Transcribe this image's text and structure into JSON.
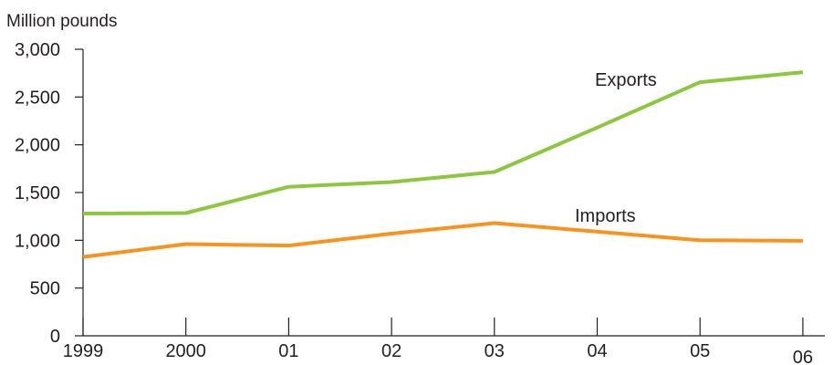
{
  "chart_data": {
    "type": "line",
    "title": "",
    "ylabel": "Million pounds",
    "xlabel": "",
    "categories": [
      "1999",
      "2000",
      "01",
      "02",
      "03",
      "04",
      "05",
      "06"
    ],
    "ylim": [
      0,
      3000
    ],
    "yticks": [
      0,
      500,
      1000,
      1500,
      2000,
      2500,
      3000
    ],
    "ytick_labels": [
      "0",
      "500",
      "1,000",
      "1,500",
      "2,000",
      "2,500",
      "3,000"
    ],
    "grid": false,
    "legend": "none",
    "series": [
      {
        "name": "Exports",
        "color": "#8dc63f",
        "values": [
          1280,
          1285,
          1560,
          1610,
          1715,
          2180,
          2655,
          2760
        ]
      },
      {
        "name": "Imports",
        "color": "#f7941d",
        "values": [
          825,
          960,
          945,
          1070,
          1180,
          1090,
          1000,
          995
        ]
      }
    ]
  }
}
